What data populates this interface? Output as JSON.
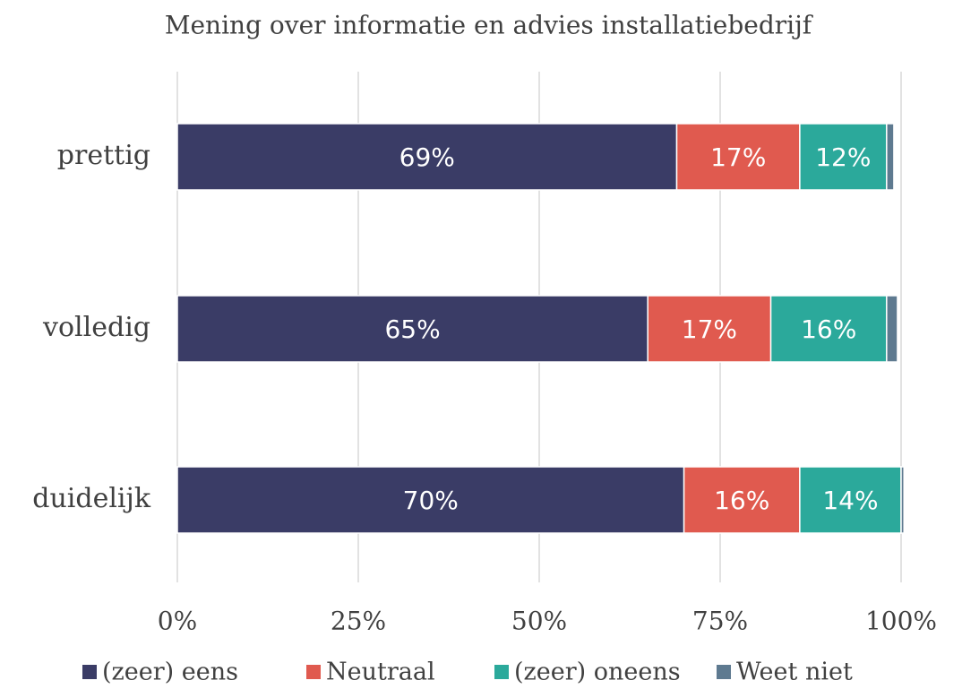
{
  "chart_data": {
    "type": "stacked-barh",
    "title": "Mening over informatie en advies installatiebedrijf",
    "categories": [
      "prettig",
      "volledig",
      "duidelijk"
    ],
    "series": [
      {
        "name": "(zeer) eens",
        "color": "#3a3c66",
        "values": [
          69,
          65,
          70
        ],
        "value_labels": [
          "69%",
          "65%",
          "70%"
        ]
      },
      {
        "name": "Neutraal",
        "color": "#e05a4f",
        "values": [
          17,
          17,
          16
        ],
        "value_labels": [
          "17%",
          "17%",
          "16%"
        ]
      },
      {
        "name": "(zeer) oneens",
        "color": "#2ba99b",
        "values": [
          12,
          16,
          14
        ],
        "value_labels": [
          "12%",
          "16%",
          "14%"
        ]
      },
      {
        "name": "Weet niet",
        "color": "#5e7a90",
        "values": [
          1,
          1.5,
          0.4
        ]
      }
    ],
    "xlim": [
      0,
      100
    ],
    "xticks": [
      {
        "value": 0,
        "label": "0%"
      },
      {
        "value": 25,
        "label": "25%"
      },
      {
        "value": 50,
        "label": "50%"
      },
      {
        "value": 75,
        "label": "75%"
      },
      {
        "value": 100,
        "label": "100%"
      }
    ],
    "grid": true,
    "legend": "bottom"
  }
}
